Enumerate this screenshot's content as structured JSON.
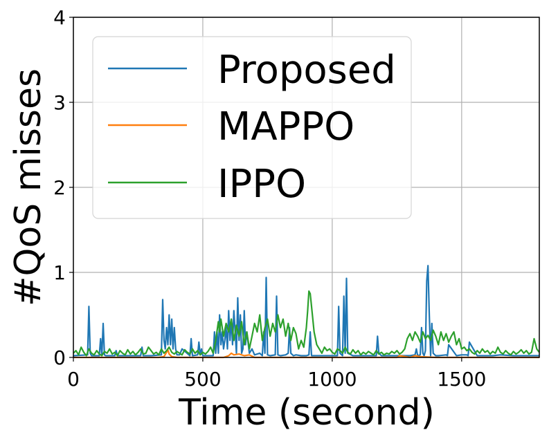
{
  "chart_data": {
    "type": "line",
    "title": "",
    "xlabel": "Time (second)",
    "ylabel": "#QoS misses",
    "xlim": [
      0,
      1800
    ],
    "ylim": [
      0,
      4
    ],
    "xticks": [
      0,
      500,
      1000,
      1500
    ],
    "yticks": [
      0,
      1,
      2,
      3,
      4
    ],
    "xtick_labels": [
      "0",
      "500",
      "1000",
      "1500"
    ],
    "ytick_labels": [
      "0",
      "1",
      "2",
      "3",
      "4"
    ],
    "grid": true,
    "legend_position": "upper-left",
    "series": [
      {
        "name": "Proposed",
        "color": "#1f77b4",
        "x": [
          0,
          55,
          60,
          65,
          70,
          100,
          105,
          110,
          115,
          120,
          125,
          160,
          165,
          170,
          260,
          265,
          270,
          300,
          340,
          345,
          350,
          355,
          360,
          365,
          370,
          375,
          380,
          385,
          390,
          395,
          400,
          410,
          420,
          450,
          455,
          460,
          480,
          485,
          490,
          495,
          500,
          540,
          545,
          550,
          555,
          560,
          565,
          570,
          575,
          580,
          585,
          590,
          595,
          600,
          605,
          610,
          615,
          620,
          625,
          630,
          635,
          640,
          645,
          650,
          655,
          660,
          665,
          670,
          680,
          690,
          700,
          720,
          730,
          735,
          740,
          745,
          750,
          760,
          780,
          785,
          790,
          800,
          820,
          830,
          835,
          840,
          850,
          860,
          880,
          900,
          910,
          915,
          920,
          930,
          960,
          1000,
          1020,
          1025,
          1030,
          1040,
          1045,
          1050,
          1055,
          1060,
          1080,
          1100,
          1150,
          1170,
          1175,
          1180,
          1190,
          1200,
          1250,
          1300,
          1320,
          1325,
          1330,
          1340,
          1345,
          1350,
          1355,
          1360,
          1365,
          1370,
          1375,
          1380,
          1385,
          1390,
          1400,
          1410,
          1440,
          1445,
          1450,
          1480,
          1500,
          1520,
          1525,
          1530,
          1560,
          1600,
          1620,
          1650,
          1700,
          1750,
          1800
        ],
        "y": [
          0.02,
          0.03,
          0.6,
          0.05,
          0.02,
          0.02,
          0.22,
          0.02,
          0.4,
          0.03,
          0.02,
          0.02,
          0.08,
          0.02,
          0.02,
          0.12,
          0.02,
          0.02,
          0.03,
          0.68,
          0.2,
          0.1,
          0.35,
          0.15,
          0.5,
          0.15,
          0.45,
          0.1,
          0.35,
          0.1,
          0.03,
          0.03,
          0.1,
          0.02,
          0.22,
          0.02,
          0.03,
          0.18,
          0.03,
          0.1,
          0.02,
          0.02,
          0.3,
          0.05,
          0.3,
          0.05,
          0.5,
          0.15,
          0.3,
          0.1,
          0.2,
          0.35,
          0.1,
          0.55,
          0.2,
          0.45,
          0.15,
          0.55,
          0.3,
          0.05,
          0.7,
          0.2,
          0.5,
          0.05,
          0.1,
          0.55,
          0.15,
          0.3,
          0.05,
          0.1,
          0.03,
          0.05,
          0.02,
          0.3,
          0.05,
          0.94,
          0.03,
          0.02,
          0.03,
          0.72,
          0.03,
          0.02,
          0.03,
          0.05,
          0.35,
          0.05,
          0.02,
          0.03,
          0.02,
          0.02,
          0.03,
          0.3,
          0.02,
          0.02,
          0.02,
          0.02,
          0.02,
          0.6,
          0.05,
          0.02,
          0.72,
          0.05,
          0.93,
          0.05,
          0.02,
          0.02,
          0.02,
          0.02,
          0.25,
          0.05,
          0.02,
          0.02,
          0.02,
          0.02,
          0.03,
          0.1,
          0.02,
          0.03,
          0.35,
          0.05,
          0.02,
          0.08,
          0.9,
          1.08,
          0.5,
          0.02,
          0.4,
          0.05,
          0.02,
          0.02,
          0.03,
          0.02,
          0.15,
          0.02,
          0.03,
          0.03,
          0.02,
          0.18,
          0.02,
          0.02,
          0.02,
          0.03,
          0.02,
          0.02,
          0.02
        ]
      },
      {
        "name": "MAPPO",
        "color": "#ff7f0e",
        "x": [
          0,
          100,
          200,
          330,
          350,
          360,
          365,
          370,
          380,
          400,
          500,
          580,
          600,
          610,
          620,
          640,
          660,
          680,
          700,
          800,
          900,
          1000,
          1100,
          1200,
          1250,
          1260,
          1300,
          1320,
          1340,
          1400,
          1500,
          1600,
          1700,
          1800
        ],
        "y": [
          0,
          0,
          0,
          0,
          0.01,
          0.06,
          0.09,
          0.04,
          0.01,
          0,
          0,
          0,
          0.02,
          0.05,
          0.03,
          0.04,
          0.02,
          0.03,
          0,
          0,
          0,
          0,
          0,
          0,
          0,
          0.02,
          0,
          0.02,
          0.01,
          0,
          0,
          0,
          0,
          0
        ]
      },
      {
        "name": "IPPO",
        "color": "#2ca02c",
        "x": [
          0,
          10,
          20,
          30,
          40,
          50,
          60,
          70,
          80,
          90,
          100,
          110,
          120,
          130,
          140,
          150,
          160,
          170,
          180,
          190,
          200,
          210,
          220,
          230,
          240,
          250,
          260,
          270,
          280,
          290,
          300,
          310,
          320,
          330,
          340,
          350,
          360,
          370,
          380,
          390,
          400,
          410,
          420,
          430,
          440,
          450,
          460,
          470,
          480,
          490,
          500,
          510,
          520,
          530,
          540,
          550,
          560,
          565,
          570,
          580,
          590,
          600,
          610,
          620,
          630,
          640,
          650,
          660,
          670,
          680,
          690,
          700,
          710,
          720,
          730,
          740,
          750,
          760,
          770,
          780,
          790,
          800,
          810,
          820,
          830,
          840,
          850,
          860,
          870,
          880,
          890,
          900,
          905,
          910,
          915,
          920,
          930,
          940,
          950,
          960,
          970,
          980,
          990,
          1000,
          1010,
          1020,
          1030,
          1040,
          1050,
          1060,
          1070,
          1080,
          1090,
          1100,
          1110,
          1120,
          1130,
          1140,
          1150,
          1160,
          1170,
          1180,
          1190,
          1200,
          1210,
          1220,
          1230,
          1240,
          1250,
          1260,
          1270,
          1280,
          1290,
          1300,
          1310,
          1320,
          1330,
          1340,
          1350,
          1360,
          1370,
          1380,
          1390,
          1400,
          1410,
          1420,
          1430,
          1440,
          1450,
          1460,
          1470,
          1480,
          1490,
          1500,
          1510,
          1520,
          1530,
          1540,
          1550,
          1560,
          1570,
          1580,
          1590,
          1600,
          1610,
          1620,
          1630,
          1640,
          1650,
          1660,
          1670,
          1680,
          1690,
          1700,
          1710,
          1720,
          1730,
          1740,
          1750,
          1760,
          1770,
          1780,
          1790,
          1800
        ],
        "y": [
          0.05,
          0.08,
          0.03,
          0.12,
          0.06,
          0.02,
          0.1,
          0.05,
          0.03,
          0.08,
          0.04,
          0.02,
          0.07,
          0.05,
          0.1,
          0.04,
          0.06,
          0.02,
          0.08,
          0.05,
          0.03,
          0.09,
          0.04,
          0.07,
          0.03,
          0.06,
          0.1,
          0.04,
          0.05,
          0.12,
          0.08,
          0.04,
          0.06,
          0.03,
          0.1,
          0.05,
          0.08,
          0.12,
          0.06,
          0.04,
          0.07,
          0.05,
          0.03,
          0.09,
          0.06,
          0.04,
          0.1,
          0.05,
          0.08,
          0.03,
          0.06,
          0.04,
          0.07,
          0.12,
          0.05,
          0.2,
          0.42,
          0.3,
          0.45,
          0.25,
          0.4,
          0.3,
          0.45,
          0.2,
          0.38,
          0.25,
          0.42,
          0.15,
          0.3,
          0.1,
          0.25,
          0.4,
          0.3,
          0.5,
          0.2,
          0.35,
          0.45,
          0.25,
          0.4,
          0.3,
          0.5,
          0.35,
          0.45,
          0.25,
          0.4,
          0.2,
          0.35,
          0.28,
          0.1,
          0.2,
          0.12,
          0.35,
          0.55,
          0.78,
          0.75,
          0.6,
          0.3,
          0.15,
          0.1,
          0.05,
          0.12,
          0.08,
          0.1,
          0.06,
          0.04,
          0.1,
          0.08,
          0.05,
          0.12,
          0.06,
          0.04,
          0.09,
          0.05,
          0.08,
          0.03,
          0.06,
          0.04,
          0.07,
          0.05,
          0.03,
          0.08,
          0.04,
          0.06,
          0.03,
          0.05,
          0.04,
          0.07,
          0.05,
          0.08,
          0.04,
          0.06,
          0.1,
          0.22,
          0.28,
          0.2,
          0.3,
          0.25,
          0.18,
          0.3,
          0.22,
          0.26,
          0.2,
          0.32,
          0.25,
          0.15,
          0.3,
          0.2,
          0.28,
          0.18,
          0.25,
          0.3,
          0.15,
          0.22,
          0.1,
          0.12,
          0.08,
          0.1,
          0.06,
          0.04,
          0.08,
          0.05,
          0.1,
          0.06,
          0.08,
          0.04,
          0.07,
          0.05,
          0.12,
          0.06,
          0.04,
          0.08,
          0.05,
          0.03,
          0.07,
          0.04,
          0.06,
          0.09,
          0.05,
          0.08,
          0.04,
          0.06,
          0.22,
          0.1,
          0.06
        ]
      }
    ]
  }
}
